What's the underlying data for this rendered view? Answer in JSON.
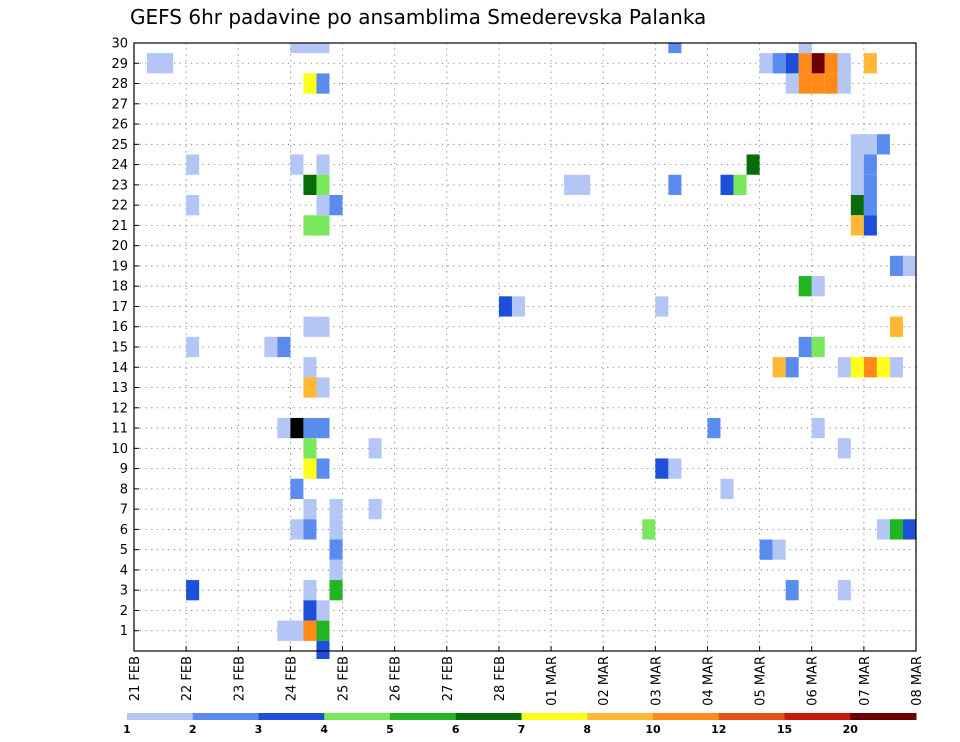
{
  "chart_data": {
    "type": "heatmap",
    "title": "GEFS 6hr padavine po ansamblima Smederevska Palanka",
    "xlabel": "",
    "ylabel": "",
    "x_start_day": 0,
    "x_end_day": 15,
    "x_step_hours": 6,
    "x_tick_labels": [
      "21 FEB",
      "22 FEB",
      "23 FEB",
      "24 FEB",
      "25 FEB",
      "26 FEB",
      "27 FEB",
      "28 FEB",
      "01 MAR",
      "02 MAR",
      "03 MAR",
      "04 MAR",
      "05 MAR",
      "06 MAR",
      "07 MAR",
      "08 MAR"
    ],
    "y_tick_labels": [
      "1",
      "2",
      "3",
      "4",
      "5",
      "6",
      "7",
      "8",
      "9",
      "10",
      "11",
      "12",
      "13",
      "14",
      "15",
      "16",
      "17",
      "18",
      "19",
      "20",
      "21",
      "22",
      "23",
      "24",
      "25",
      "26",
      "27",
      "28",
      "29",
      "30"
    ],
    "ylim": [
      0,
      30
    ],
    "grid": true,
    "legend": {
      "placement": "bottom",
      "bin_labels": [
        "1",
        "2",
        "3",
        "4",
        "5",
        "6",
        "7",
        "8",
        "10",
        "12",
        "15",
        "20"
      ],
      "colors": [
        "#b3c6f5",
        "#5a8cf0",
        "#1d4fd8",
        "#7ae85c",
        "#21b521",
        "#0a6b0a",
        "#ffff1a",
        "#ffb833",
        "#ff8a1a",
        "#e8501a",
        "#c81a0a",
        "#6b0000"
      ]
    },
    "cells": [
      {
        "member": 29,
        "t": 0.25,
        "bin": 1
      },
      {
        "member": 29,
        "t": 0.5,
        "bin": 1
      },
      {
        "member": 24,
        "t": 1,
        "bin": 1
      },
      {
        "member": 22,
        "t": 1,
        "bin": 1
      },
      {
        "member": 15,
        "t": 1,
        "bin": 1
      },
      {
        "member": 3,
        "t": 1,
        "bin": 3
      },
      {
        "member": 15,
        "t": 2.5,
        "bin": 1
      },
      {
        "member": 15,
        "t": 2.75,
        "bin": 2
      },
      {
        "member": 11,
        "t": 2.75,
        "bin": 1
      },
      {
        "member": 1,
        "t": 2.75,
        "bin": 1
      },
      {
        "member": 30,
        "t": 3,
        "bin": 1
      },
      {
        "member": 30,
        "t": 3.25,
        "bin": 1
      },
      {
        "member": 30,
        "t": 3.5,
        "bin": 1
      },
      {
        "member": 24,
        "t": 3,
        "bin": 1
      },
      {
        "member": 11,
        "t": 3,
        "bin": 14
      },
      {
        "member": 8,
        "t": 3,
        "bin": 2
      },
      {
        "member": 6,
        "t": 3,
        "bin": 1
      },
      {
        "member": 1,
        "t": 3,
        "bin": 1
      },
      {
        "member": 28,
        "t": 3.25,
        "bin": 7
      },
      {
        "member": 28,
        "t": 3.5,
        "bin": 2
      },
      {
        "member": 24,
        "t": 3.5,
        "bin": 1
      },
      {
        "member": 23,
        "t": 3.25,
        "bin": 6
      },
      {
        "member": 23,
        "t": 3.5,
        "bin": 4
      },
      {
        "member": 22,
        "t": 3.5,
        "bin": 1
      },
      {
        "member": 22,
        "t": 3.75,
        "bin": 2
      },
      {
        "member": 21,
        "t": 3.25,
        "bin": 4
      },
      {
        "member": 21,
        "t": 3.5,
        "bin": 4
      },
      {
        "member": 16,
        "t": 3.25,
        "bin": 1
      },
      {
        "member": 16,
        "t": 3.5,
        "bin": 1
      },
      {
        "member": 14,
        "t": 3.25,
        "bin": 1
      },
      {
        "member": 13,
        "t": 3.25,
        "bin": 8
      },
      {
        "member": 13,
        "t": 3.5,
        "bin": 1
      },
      {
        "member": 11,
        "t": 3.25,
        "bin": 2
      },
      {
        "member": 11,
        "t": 3.5,
        "bin": 2
      },
      {
        "member": 10,
        "t": 3.25,
        "bin": 4
      },
      {
        "member": 9,
        "t": 3.25,
        "bin": 7
      },
      {
        "member": 9,
        "t": 3.5,
        "bin": 2
      },
      {
        "member": 7,
        "t": 3.25,
        "bin": 1
      },
      {
        "member": 6,
        "t": 3.25,
        "bin": 2
      },
      {
        "member": 7,
        "t": 3.75,
        "bin": 1
      },
      {
        "member": 6,
        "t": 3.75,
        "bin": 1
      },
      {
        "member": 5,
        "t": 3.75,
        "bin": 2
      },
      {
        "member": 4,
        "t": 3.75,
        "bin": 1
      },
      {
        "member": 3,
        "t": 3.25,
        "bin": 1
      },
      {
        "member": 3,
        "t": 3.75,
        "bin": 5
      },
      {
        "member": 2,
        "t": 3.25,
        "bin": 3
      },
      {
        "member": 2,
        "t": 3.5,
        "bin": 1
      },
      {
        "member": 1,
        "t": 3.25,
        "bin": 9
      },
      {
        "member": 1,
        "t": 3.5,
        "bin": 5
      },
      {
        "member": 0,
        "t": 3.5,
        "bin": 3
      },
      {
        "member": 10,
        "t": 4.5,
        "bin": 1
      },
      {
        "member": 7,
        "t": 4.5,
        "bin": 1
      },
      {
        "member": 17,
        "t": 7,
        "bin": 3
      },
      {
        "member": 17,
        "t": 7.25,
        "bin": 1
      },
      {
        "member": 23,
        "t": 8.25,
        "bin": 1
      },
      {
        "member": 23,
        "t": 8.5,
        "bin": 1
      },
      {
        "member": 6,
        "t": 9.75,
        "bin": 4
      },
      {
        "member": 17,
        "t": 10,
        "bin": 1
      },
      {
        "member": 9,
        "t": 10,
        "bin": 3
      },
      {
        "member": 9,
        "t": 10.25,
        "bin": 1
      },
      {
        "member": 30,
        "t": 10.25,
        "bin": 2
      },
      {
        "member": 23,
        "t": 10.25,
        "bin": 2
      },
      {
        "member": 11,
        "t": 11,
        "bin": 2
      },
      {
        "member": 23,
        "t": 11.25,
        "bin": 3
      },
      {
        "member": 23,
        "t": 11.5,
        "bin": 4
      },
      {
        "member": 8,
        "t": 11.25,
        "bin": 1
      },
      {
        "member": 24,
        "t": 11.75,
        "bin": 6
      },
      {
        "member": 29,
        "t": 12,
        "bin": 1
      },
      {
        "member": 29,
        "t": 12.25,
        "bin": 2
      },
      {
        "member": 29,
        "t": 12.5,
        "bin": 3
      },
      {
        "member": 28,
        "t": 12.5,
        "bin": 1
      },
      {
        "member": 5,
        "t": 12,
        "bin": 2
      },
      {
        "member": 5,
        "t": 12.25,
        "bin": 1
      },
      {
        "member": 14,
        "t": 12.25,
        "bin": 8
      },
      {
        "member": 14,
        "t": 12.5,
        "bin": 2
      },
      {
        "member": 3,
        "t": 12.5,
        "bin": 2
      },
      {
        "member": 30,
        "t": 12.75,
        "bin": 1
      },
      {
        "member": 29,
        "t": 12.75,
        "bin": 9
      },
      {
        "member": 29,
        "t": 13,
        "bin": 12
      },
      {
        "member": 29,
        "t": 13.25,
        "bin": 9
      },
      {
        "member": 29,
        "t": 13.5,
        "bin": 1
      },
      {
        "member": 28,
        "t": 12.75,
        "bin": 9
      },
      {
        "member": 28,
        "t": 13,
        "bin": 9
      },
      {
        "member": 28,
        "t": 13.25,
        "bin": 9
      },
      {
        "member": 28,
        "t": 13.5,
        "bin": 1
      },
      {
        "member": 18,
        "t": 12.75,
        "bin": 5
      },
      {
        "member": 18,
        "t": 13,
        "bin": 1
      },
      {
        "member": 15,
        "t": 12.75,
        "bin": 2
      },
      {
        "member": 15,
        "t": 13,
        "bin": 4
      },
      {
        "member": 11,
        "t": 13,
        "bin": 1
      },
      {
        "member": 14,
        "t": 13.5,
        "bin": 1
      },
      {
        "member": 10,
        "t": 13.5,
        "bin": 1
      },
      {
        "member": 3,
        "t": 13.5,
        "bin": 1
      },
      {
        "member": 29,
        "t": 14,
        "bin": 8
      },
      {
        "member": 25,
        "t": 13.75,
        "bin": 1
      },
      {
        "member": 25,
        "t": 14,
        "bin": 1
      },
      {
        "member": 25,
        "t": 14.25,
        "bin": 2
      },
      {
        "member": 24,
        "t": 13.75,
        "bin": 1
      },
      {
        "member": 24,
        "t": 14,
        "bin": 2
      },
      {
        "member": 23,
        "t": 13.75,
        "bin": 1
      },
      {
        "member": 23,
        "t": 14,
        "bin": 2
      },
      {
        "member": 22,
        "t": 13.75,
        "bin": 6
      },
      {
        "member": 22,
        "t": 14,
        "bin": 2
      },
      {
        "member": 21,
        "t": 13.75,
        "bin": 8
      },
      {
        "member": 21,
        "t": 14,
        "bin": 3
      },
      {
        "member": 14,
        "t": 13.75,
        "bin": 7
      },
      {
        "member": 14,
        "t": 14,
        "bin": 9
      },
      {
        "member": 14,
        "t": 14.25,
        "bin": 7
      },
      {
        "member": 14,
        "t": 14.5,
        "bin": 1
      },
      {
        "member": 16,
        "t": 14.5,
        "bin": 8
      },
      {
        "member": 19,
        "t": 14.5,
        "bin": 2
      },
      {
        "member": 19,
        "t": 14.75,
        "bin": 1
      },
      {
        "member": 6,
        "t": 14.25,
        "bin": 1
      },
      {
        "member": 6,
        "t": 14.5,
        "bin": 5
      },
      {
        "member": 6,
        "t": 14.75,
        "bin": 3
      }
    ]
  }
}
